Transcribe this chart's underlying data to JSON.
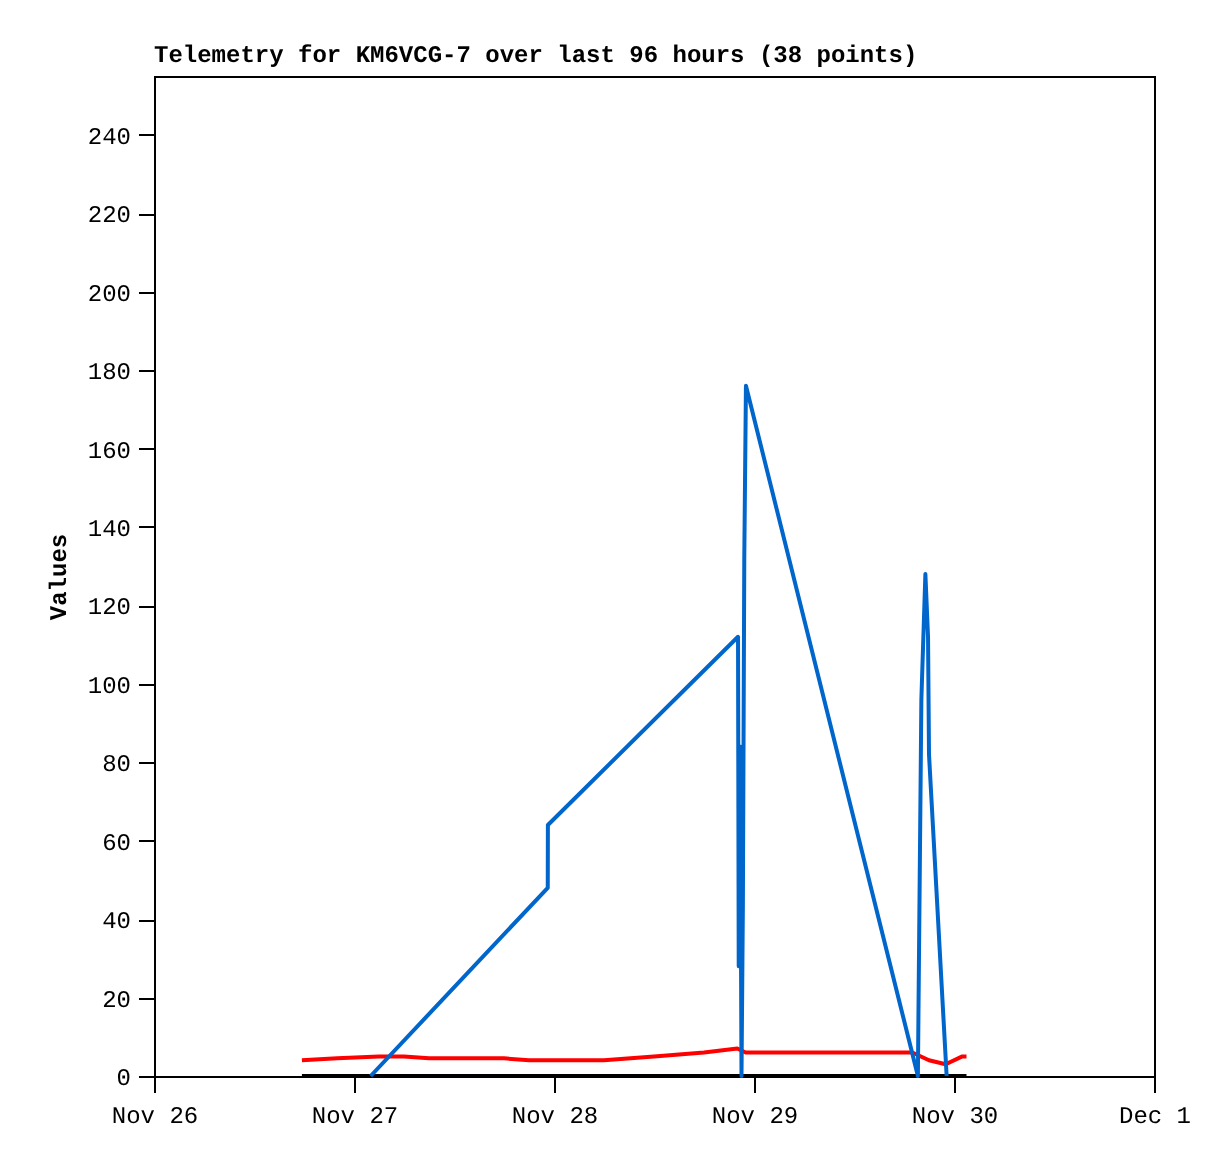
{
  "chart_data": {
    "type": "line",
    "title": "Telemetry for KM6VCG-7 over last 96 hours (38 points)",
    "ylabel": "Values",
    "xlim": [
      "--11-26",
      "--12-01"
    ],
    "xticks": [
      {
        "value": "--11-26",
        "label": "Nov 26"
      },
      {
        "value": "--11-27",
        "label": "Nov 27"
      },
      {
        "value": "--11-28",
        "label": "Nov 28"
      },
      {
        "value": "--11-29",
        "label": "Nov 29"
      },
      {
        "value": "--11-30",
        "label": "Nov 30"
      },
      {
        "value": "--12-01",
        "label": "Dec 1"
      }
    ],
    "ylim": [
      0,
      255
    ],
    "yticks": [
      0,
      20,
      40,
      60,
      80,
      100,
      120,
      140,
      160,
      180,
      200,
      220,
      240
    ],
    "grid": false,
    "marker": "none",
    "line_style": "solid",
    "series": [
      {
        "color": "#000000",
        "x": [
          "--11-26T17:45",
          "--11-30T01:30"
        ],
        "values": [
          0,
          0
        ]
      },
      {
        "color": "#ff0000",
        "x": [
          "--11-26T17:45",
          "--11-26T22:00",
          "--11-27T03:00",
          "--11-27T06:00",
          "--11-27T09:00",
          "--11-27T18:00",
          "--11-27T21:00",
          "--11-28T06:00",
          "--11-28T12:00",
          "--11-28T18:00",
          "--11-28T22:00",
          "--11-28T23:00",
          "--11-29T19:00",
          "--11-29T21:00",
          "--11-29T23:00",
          "--11-30T01:00",
          "--11-30T01:30"
        ],
        "values": [
          4,
          4.5,
          5,
          5,
          4.5,
          4.5,
          4,
          4,
          5,
          6,
          7,
          6,
          6,
          4,
          3,
          5,
          5
        ]
      },
      {
        "color": "#0066cc",
        "x": [
          "--11-27T02:00",
          "--11-27T23:15",
          "--11-27T23:16",
          "--11-28T22:05",
          "--11-28T22:10",
          "--11-28T22:20",
          "--11-28T22:30",
          "--11-28T22:40",
          "--11-28T22:50",
          "--11-28T23:02",
          "--11-29T19:40",
          "--11-29T20:05",
          "--11-29T20:34",
          "--11-29T20:53",
          "--11-29T21:00",
          "--11-29T23:07"
        ],
        "values": [
          0,
          48,
          64,
          112,
          28,
          84,
          0,
          44,
          132,
          176,
          0,
          96,
          128,
          112,
          82,
          0
        ]
      }
    ]
  }
}
